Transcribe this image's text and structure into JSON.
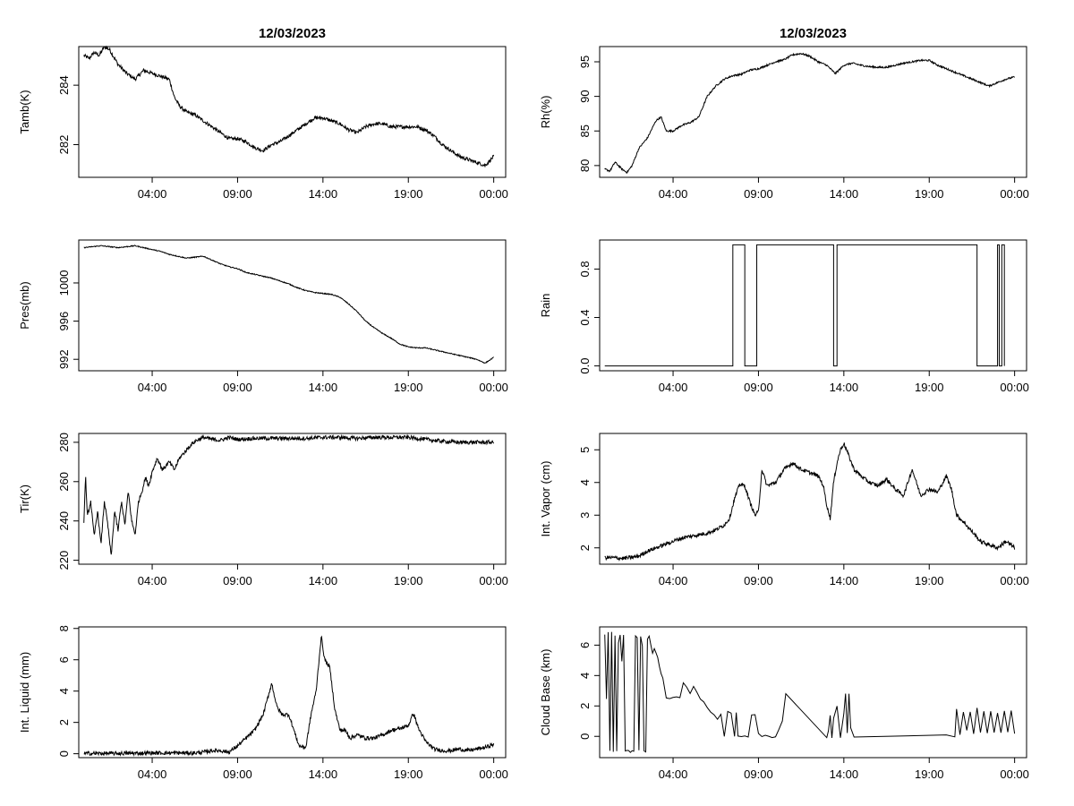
{
  "chart_data": [
    {
      "type": "line",
      "panel": "tamb",
      "title": "12/03/2023",
      "xlabel": "",
      "ylabel": "Tamb(K)",
      "xlim": [
        -0.3,
        24.7
      ],
      "ylim": [
        280.9,
        285.3
      ],
      "x_ticks": [
        4,
        9,
        14,
        19,
        24
      ],
      "x_tick_labels": [
        "04:00",
        "09:00",
        "14:00",
        "19:00",
        "00:00"
      ],
      "y_ticks": [
        282,
        284
      ],
      "y_tick_labels": [
        "282",
        "284"
      ],
      "noise": 0.12,
      "step": false,
      "x": [
        0.0,
        0.3,
        0.6,
        0.9,
        1.2,
        1.5,
        2.0,
        2.5,
        3.0,
        3.5,
        4.0,
        4.5,
        5.0,
        5.3,
        5.6,
        6.0,
        6.5,
        7.0,
        7.5,
        8.0,
        8.5,
        9.0,
        9.5,
        10.0,
        10.5,
        11.0,
        11.5,
        12.0,
        12.5,
        13.0,
        13.5,
        14.0,
        14.5,
        15.0,
        15.5,
        16.0,
        16.5,
        17.0,
        17.5,
        18.0,
        18.5,
        19.0,
        19.5,
        20.0,
        20.5,
        21.0,
        21.5,
        22.0,
        22.5,
        23.0,
        23.5,
        24.0
      ],
      "y": [
        285.0,
        284.9,
        285.1,
        285.0,
        285.3,
        285.2,
        284.7,
        284.4,
        284.2,
        284.5,
        284.4,
        284.3,
        284.2,
        283.6,
        283.3,
        283.1,
        283.0,
        282.8,
        282.6,
        282.4,
        282.2,
        282.2,
        282.1,
        281.9,
        281.8,
        282.0,
        282.1,
        282.3,
        282.5,
        282.7,
        282.9,
        282.9,
        282.8,
        282.7,
        282.5,
        282.4,
        282.6,
        282.7,
        282.7,
        282.6,
        282.6,
        282.6,
        282.6,
        282.5,
        282.3,
        282.0,
        281.8,
        281.6,
        281.5,
        281.4,
        281.3,
        281.6
      ]
    },
    {
      "type": "line",
      "panel": "rh",
      "title": "12/03/2023",
      "xlabel": "",
      "ylabel": "Rh(%)",
      "xlim": [
        -0.3,
        24.7
      ],
      "ylim": [
        78.3,
        97.2
      ],
      "x_ticks": [
        4,
        9,
        14,
        19,
        24
      ],
      "x_tick_labels": [
        "04:00",
        "09:00",
        "14:00",
        "19:00",
        "00:00"
      ],
      "y_ticks": [
        80,
        85,
        90,
        95
      ],
      "y_tick_labels": [
        "80",
        "85",
        "90",
        "95"
      ],
      "noise": 0.25,
      "step": false,
      "x": [
        0.0,
        0.3,
        0.6,
        1.0,
        1.3,
        1.6,
        2.0,
        2.5,
        3.0,
        3.3,
        3.6,
        4.0,
        4.5,
        5.0,
        5.5,
        6.0,
        6.5,
        7.0,
        7.5,
        8.0,
        8.5,
        9.0,
        9.5,
        10.0,
        10.5,
        11.0,
        11.5,
        12.0,
        12.5,
        13.0,
        13.5,
        14.0,
        14.5,
        15.0,
        15.5,
        16.0,
        16.5,
        17.0,
        17.5,
        18.0,
        18.5,
        19.0,
        19.5,
        20.0,
        20.5,
        21.0,
        21.5,
        22.0,
        22.5,
        23.0,
        23.5,
        24.0
      ],
      "y": [
        79.5,
        79.2,
        80.5,
        79.5,
        79.0,
        80.0,
        82.5,
        84.0,
        86.5,
        87.0,
        85.0,
        85.0,
        85.8,
        86.2,
        87.0,
        90.0,
        91.5,
        92.5,
        93.0,
        93.2,
        93.8,
        94.0,
        94.5,
        95.0,
        95.3,
        96.0,
        96.2,
        95.8,
        95.0,
        94.5,
        93.3,
        94.5,
        94.8,
        94.5,
        94.3,
        94.2,
        94.2,
        94.5,
        94.8,
        95.0,
        95.2,
        95.2,
        94.5,
        94.0,
        93.5,
        93.0,
        92.5,
        92.0,
        91.5,
        92.0,
        92.5,
        92.8
      ]
    },
    {
      "type": "line",
      "panel": "pres",
      "title": "",
      "xlabel": "",
      "ylabel": "Pres(mb)",
      "xlim": [
        -0.3,
        24.7
      ],
      "ylim": [
        990.8,
        1004.5
      ],
      "x_ticks": [
        4,
        9,
        14,
        19,
        24
      ],
      "x_tick_labels": [
        "04:00",
        "09:00",
        "14:00",
        "19:00",
        "00:00"
      ],
      "y_ticks": [
        992,
        996,
        1000
      ],
      "y_tick_labels": [
        "992",
        "996",
        "1000"
      ],
      "noise": 0.1,
      "step": false,
      "x": [
        0.0,
        0.5,
        1.0,
        1.5,
        2.0,
        2.5,
        3.0,
        3.5,
        4.0,
        4.5,
        5.0,
        5.5,
        6.0,
        6.5,
        7.0,
        7.5,
        8.0,
        8.5,
        9.0,
        9.5,
        10.0,
        10.5,
        11.0,
        11.5,
        12.0,
        12.5,
        13.0,
        13.5,
        14.0,
        14.5,
        15.0,
        15.5,
        16.0,
        16.5,
        17.0,
        17.5,
        18.0,
        18.5,
        19.0,
        19.5,
        20.0,
        20.5,
        21.0,
        21.5,
        22.0,
        22.5,
        23.0,
        23.5,
        24.0
      ],
      "y": [
        1003.7,
        1003.8,
        1003.9,
        1003.8,
        1003.7,
        1003.8,
        1003.9,
        1003.7,
        1003.5,
        1003.3,
        1003.0,
        1002.8,
        1002.6,
        1002.7,
        1002.8,
        1002.4,
        1002.0,
        1001.7,
        1001.5,
        1001.1,
        1000.9,
        1000.7,
        1000.5,
        1000.2,
        999.9,
        999.5,
        999.2,
        999.0,
        998.9,
        998.8,
        998.5,
        997.8,
        997.0,
        996.0,
        995.3,
        994.7,
        994.2,
        993.6,
        993.3,
        993.2,
        993.2,
        993.0,
        992.8,
        992.6,
        992.4,
        992.2,
        992.0,
        991.6,
        992.2
      ]
    },
    {
      "type": "line",
      "panel": "rain",
      "title": "",
      "xlabel": "",
      "ylabel": "Rain",
      "xlim": [
        -0.3,
        24.7
      ],
      "ylim": [
        -0.04,
        1.04
      ],
      "x_ticks": [
        4,
        9,
        14,
        19,
        24
      ],
      "x_tick_labels": [
        "04:00",
        "09:00",
        "14:00",
        "19:00",
        "00:00"
      ],
      "y_ticks": [
        0.0,
        0.4,
        0.8
      ],
      "y_tick_labels": [
        "0.0",
        "0.4",
        "0.8"
      ],
      "noise": 0,
      "step": true,
      "x": [
        0.0,
        7.5,
        7.5,
        8.2,
        8.2,
        8.9,
        8.9,
        13.4,
        13.4,
        13.6,
        13.6,
        21.8,
        21.8,
        23.0,
        23.0,
        23.1,
        23.1,
        23.25,
        23.25,
        23.4,
        23.4
      ],
      "y": [
        0,
        0,
        1,
        1,
        0,
        0,
        1,
        1,
        0,
        0,
        1,
        1,
        0,
        0,
        1,
        1,
        0,
        0,
        1,
        1,
        0
      ]
    },
    {
      "type": "line",
      "panel": "tir",
      "title": "",
      "xlabel": "",
      "ylabel": "Tir(K)",
      "xlim": [
        -0.3,
        24.7
      ],
      "ylim": [
        218.0,
        284.5
      ],
      "x_ticks": [
        4,
        9,
        14,
        19,
        24
      ],
      "x_tick_labels": [
        "04:00",
        "09:00",
        "14:00",
        "19:00",
        "00:00"
      ],
      "y_ticks": [
        220,
        240,
        260,
        280
      ],
      "y_tick_labels": [
        "220",
        "240",
        "260",
        "280"
      ],
      "noise": 2.0,
      "step": false,
      "x": [
        0.0,
        0.1,
        0.2,
        0.4,
        0.6,
        0.8,
        1.0,
        1.2,
        1.4,
        1.6,
        1.8,
        2.0,
        2.2,
        2.4,
        2.6,
        2.8,
        3.0,
        3.2,
        3.4,
        3.6,
        3.8,
        4.0,
        4.3,
        4.6,
        5.0,
        5.3,
        5.6,
        6.0,
        6.3,
        6.6,
        7.0,
        7.5,
        8.0,
        8.5,
        9.0,
        10.0,
        11.0,
        12.0,
        13.0,
        14.0,
        15.0,
        16.0,
        17.0,
        18.0,
        19.0,
        20.0,
        21.0,
        22.0,
        23.0,
        24.0
      ],
      "y": [
        240,
        263,
        242,
        250,
        232,
        245,
        228,
        250,
        238,
        222,
        245,
        235,
        250,
        238,
        255,
        240,
        233,
        250,
        255,
        262,
        258,
        265,
        272,
        266,
        270,
        266,
        272,
        276,
        279,
        281,
        282.5,
        281.5,
        281,
        282.5,
        281.5,
        282,
        282,
        282,
        282,
        282.5,
        282.5,
        282,
        282.5,
        282.5,
        282.5,
        281.5,
        280.5,
        280,
        280,
        280
      ]
    },
    {
      "type": "line",
      "panel": "vapor",
      "title": "",
      "xlabel": "",
      "ylabel": "Int. Vapor (cm)",
      "xlim": [
        -0.3,
        24.7
      ],
      "ylim": [
        1.5,
        5.5
      ],
      "x_ticks": [
        4,
        9,
        14,
        19,
        24
      ],
      "x_tick_labels": [
        "04:00",
        "09:00",
        "14:00",
        "19:00",
        "00:00"
      ],
      "y_ticks": [
        2,
        3,
        4,
        5
      ],
      "y_tick_labels": [
        "2",
        "3",
        "4",
        "5"
      ],
      "noise": 0.12,
      "step": false,
      "x": [
        0.0,
        0.5,
        1.0,
        1.5,
        2.0,
        2.5,
        3.0,
        3.5,
        4.0,
        4.5,
        5.0,
        5.5,
        6.0,
        6.5,
        7.0,
        7.3,
        7.6,
        7.9,
        8.2,
        8.5,
        8.8,
        9.0,
        9.2,
        9.5,
        10.0,
        10.5,
        11.0,
        11.5,
        12.0,
        12.5,
        12.8,
        13.0,
        13.2,
        13.4,
        13.6,
        13.8,
        14.0,
        14.3,
        14.6,
        15.0,
        15.5,
        16.0,
        16.5,
        17.0,
        17.5,
        18.0,
        18.5,
        19.0,
        19.5,
        20.0,
        20.3,
        20.6,
        21.0,
        21.5,
        22.0,
        22.5,
        23.0,
        23.5,
        24.0
      ],
      "y": [
        1.7,
        1.7,
        1.68,
        1.7,
        1.75,
        1.9,
        2.0,
        2.1,
        2.2,
        2.3,
        2.35,
        2.4,
        2.45,
        2.55,
        2.7,
        2.9,
        3.5,
        3.95,
        3.9,
        3.4,
        3.0,
        3.1,
        4.4,
        3.9,
        4.0,
        4.4,
        4.6,
        4.4,
        4.3,
        4.2,
        3.9,
        3.3,
        2.9,
        4.0,
        4.6,
        5.0,
        5.2,
        4.8,
        4.4,
        4.2,
        4.0,
        3.9,
        4.1,
        3.8,
        3.6,
        4.4,
        3.6,
        3.8,
        3.7,
        4.2,
        3.8,
        3.0,
        2.8,
        2.5,
        2.2,
        2.1,
        2.0,
        2.2,
        2.0
      ]
    },
    {
      "type": "line",
      "panel": "liquid",
      "title": "",
      "xlabel": "",
      "ylabel": "Int. Liquid (mm)",
      "xlim": [
        -0.3,
        24.7
      ],
      "ylim": [
        -0.25,
        8.1
      ],
      "x_ticks": [
        4,
        9,
        14,
        19,
        24
      ],
      "x_tick_labels": [
        "04:00",
        "09:00",
        "14:00",
        "19:00",
        "00:00"
      ],
      "y_ticks": [
        0,
        2,
        4,
        6,
        8
      ],
      "y_tick_labels": [
        "0",
        "2",
        "4",
        "6",
        "8"
      ],
      "noise": 0.25,
      "step": false,
      "x": [
        0.0,
        1.0,
        2.0,
        3.0,
        4.0,
        5.0,
        6.0,
        6.5,
        7.0,
        7.5,
        8.0,
        8.5,
        9.0,
        9.5,
        10.0,
        10.5,
        11.0,
        11.3,
        11.6,
        12.0,
        12.3,
        12.6,
        13.0,
        13.3,
        13.6,
        13.9,
        14.1,
        14.4,
        14.7,
        15.0,
        15.3,
        15.6,
        16.0,
        16.5,
        17.0,
        17.5,
        18.0,
        18.5,
        19.0,
        19.3,
        19.6,
        20.0,
        20.5,
        21.0,
        21.5,
        22.0,
        22.5,
        23.0,
        23.5,
        24.0
      ],
      "y": [
        0.02,
        0.02,
        0.02,
        0.03,
        0.05,
        0.05,
        0.05,
        0.05,
        0.1,
        0.2,
        0.2,
        0.1,
        0.5,
        1.0,
        1.5,
        2.5,
        4.5,
        3.0,
        2.5,
        2.5,
        1.5,
        0.5,
        0.4,
        2.5,
        4.0,
        7.5,
        6.0,
        5.5,
        2.8,
        1.5,
        1.5,
        1.0,
        1.2,
        1.0,
        1.0,
        1.2,
        1.5,
        1.6,
        1.8,
        2.6,
        1.6,
        0.8,
        0.3,
        0.2,
        0.2,
        0.3,
        0.2,
        0.3,
        0.4,
        0.6
      ]
    },
    {
      "type": "line",
      "panel": "cloud",
      "title": "",
      "xlabel": "",
      "ylabel": "Cloud Base (km)",
      "xlim": [
        -0.3,
        24.7
      ],
      "ylim": [
        -1.4,
        7.2
      ],
      "x_ticks": [
        4,
        9,
        14,
        19,
        24
      ],
      "x_tick_labels": [
        "04:00",
        "09:00",
        "14:00",
        "19:00",
        "00:00"
      ],
      "y_ticks": [
        0,
        2,
        4,
        6
      ],
      "y_tick_labels": [
        "0",
        "2",
        "4",
        "6"
      ],
      "noise": 0.2,
      "step": true,
      "x": [
        0.0,
        0.1,
        0.2,
        0.3,
        0.4,
        0.5,
        0.6,
        0.7,
        0.8,
        0.9,
        1.0,
        1.1,
        1.2,
        1.3,
        1.4,
        1.5,
        1.6,
        1.7,
        1.8,
        1.9,
        2.0,
        2.1,
        2.2,
        2.3,
        2.4,
        2.5,
        2.6,
        2.7,
        2.8,
        2.9,
        3.0,
        3.1,
        3.2,
        3.3,
        3.4,
        3.6,
        3.8,
        4.0,
        4.2,
        4.4,
        4.6,
        4.8,
        5.0,
        5.2,
        5.4,
        5.6,
        5.8,
        6.0,
        6.2,
        6.4,
        6.6,
        6.8,
        7.0,
        7.2,
        7.4,
        7.6,
        7.7,
        7.8,
        8.0,
        8.2,
        8.4,
        8.6,
        8.8,
        9.0,
        9.2,
        9.4,
        9.6,
        9.8,
        10.0,
        10.2,
        10.4,
        10.6,
        13.0,
        13.1,
        13.2,
        13.3,
        13.4,
        13.6,
        13.8,
        14.0,
        14.1,
        14.2,
        14.3,
        14.4,
        14.6,
        20.0,
        20.5,
        20.6,
        20.8,
        21.0,
        21.2,
        21.4,
        21.6,
        21.8,
        22.0,
        22.2,
        22.4,
        22.6,
        22.8,
        23.0,
        23.2,
        23.4,
        23.6,
        23.8,
        24.0
      ],
      "y": [
        6.6,
        2.5,
        6.8,
        -1.0,
        6.9,
        -1.0,
        6.7,
        -1.0,
        6.2,
        6.7,
        5.0,
        6.7,
        -1.0,
        -1.0,
        -1.0,
        -1.0,
        -1.0,
        -1.0,
        6.7,
        6.5,
        -1.0,
        6.6,
        6.0,
        -1.0,
        -1.0,
        6.4,
        6.6,
        6.0,
        5.5,
        5.8,
        5.4,
        5.2,
        4.5,
        4.2,
        3.8,
        2.6,
        2.4,
        2.5,
        2.7,
        2.6,
        3.5,
        3.3,
        2.9,
        3.2,
        2.8,
        2.5,
        2.2,
        1.8,
        1.6,
        1.5,
        1.2,
        1.4,
        0.0,
        1.6,
        1.5,
        0.0,
        1.6,
        0.0,
        0.0,
        0.0,
        0.0,
        1.5,
        1.5,
        0.1,
        0.0,
        0.0,
        0.0,
        0.0,
        0.0,
        0.5,
        1.0,
        2.8,
        0.0,
        0.3,
        1.4,
        0.0,
        1.2,
        2.0,
        0.0,
        1.5,
        2.8,
        0.2,
        2.9,
        0.5,
        0.0,
        0.0,
        0.0,
        1.8,
        0.2,
        1.5,
        0.3,
        1.7,
        0.2,
        1.8,
        0.3,
        1.6,
        0.2,
        1.7,
        0.3,
        1.6,
        0.2,
        1.7,
        0.3,
        1.6,
        0.2
      ]
    }
  ]
}
